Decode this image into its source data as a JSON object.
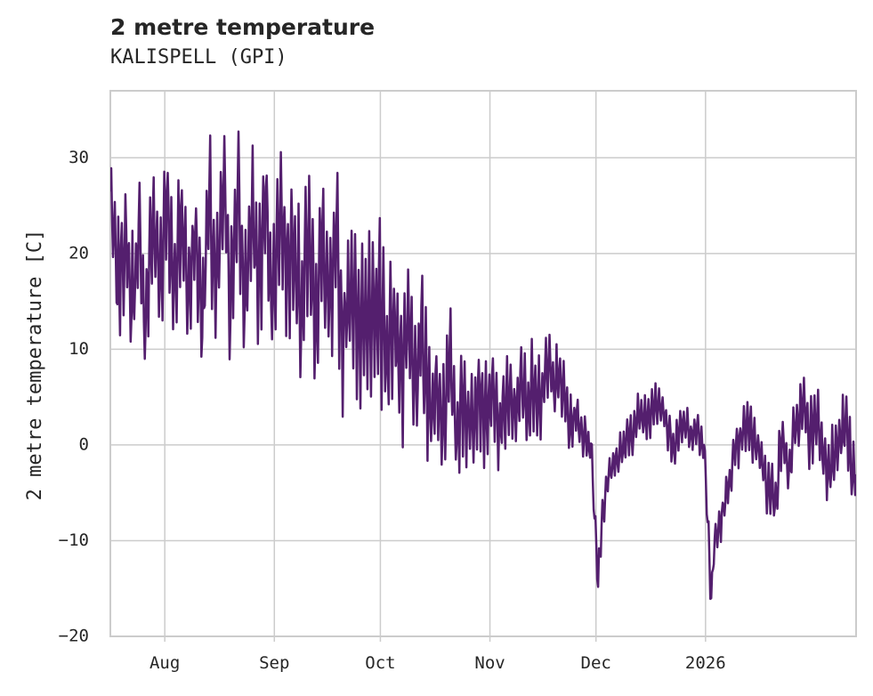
{
  "chart_data": {
    "type": "line",
    "title": "2 metre temperature",
    "subtitle": "KALISPELL (GPI)",
    "xlabel": "",
    "ylabel": "2 metre temperature [C]",
    "ylim": [
      -20,
      37
    ],
    "yticks": [
      -20,
      -10,
      0,
      10,
      20,
      30
    ],
    "xlim_days": [
      0,
      211
    ],
    "xticks": [
      {
        "label": "Aug",
        "day": 15.4
      },
      {
        "label": "Sep",
        "day": 46.4
      },
      {
        "label": "Oct",
        "day": 76.4
      },
      {
        "label": "Nov",
        "day": 107.4
      },
      {
        "label": "Dec",
        "day": 137.4
      },
      {
        "label": "2026",
        "day": 168.4
      }
    ],
    "grid": true,
    "line_color": "#541f6e",
    "series": [
      {
        "name": "2 metre temperature",
        "keypoints": [
          [
            0,
            26
          ],
          [
            2,
            16
          ],
          [
            4,
            22
          ],
          [
            6,
            15
          ],
          [
            8,
            21
          ],
          [
            10,
            13
          ],
          [
            12,
            24
          ],
          [
            14,
            17
          ],
          [
            16,
            27
          ],
          [
            18,
            15
          ],
          [
            20,
            25
          ],
          [
            22,
            16
          ],
          [
            24,
            22
          ],
          [
            26,
            14
          ],
          [
            28,
            25
          ],
          [
            30,
            15
          ],
          [
            32,
            27
          ],
          [
            34,
            16
          ],
          [
            36,
            26
          ],
          [
            38,
            15
          ],
          [
            40,
            24
          ],
          [
            42,
            17
          ],
          [
            44,
            25
          ],
          [
            46,
            15
          ],
          [
            48,
            26
          ],
          [
            50,
            18
          ],
          [
            52,
            23
          ],
          [
            54,
            14
          ],
          [
            56,
            22
          ],
          [
            58,
            14
          ],
          [
            60,
            21
          ],
          [
            62,
            13
          ],
          [
            64,
            20
          ],
          [
            66,
            11
          ],
          [
            68,
            19
          ],
          [
            70,
            10
          ],
          [
            72,
            17
          ],
          [
            74,
            10
          ],
          [
            76,
            16
          ],
          [
            78,
            9
          ],
          [
            80,
            14
          ],
          [
            82,
            8
          ],
          [
            84,
            12
          ],
          [
            86,
            5
          ],
          [
            88,
            11
          ],
          [
            90,
            4
          ],
          [
            92,
            6
          ],
          [
            94,
            3
          ],
          [
            96,
            8
          ],
          [
            98,
            2
          ],
          [
            100,
            5
          ],
          [
            102,
            2
          ],
          [
            104,
            7
          ],
          [
            106,
            3
          ],
          [
            108,
            5
          ],
          [
            110,
            1
          ],
          [
            112,
            5
          ],
          [
            114,
            3
          ],
          [
            116,
            6
          ],
          [
            118,
            4
          ],
          [
            120,
            7
          ],
          [
            122,
            5
          ],
          [
            124,
            8
          ],
          [
            126,
            7
          ],
          [
            128,
            6
          ],
          [
            130,
            2
          ],
          [
            132,
            3
          ],
          [
            134,
            1
          ],
          [
            136,
            0
          ],
          [
            137,
            -7
          ],
          [
            138,
            -14
          ],
          [
            139,
            -8
          ],
          [
            140,
            -5
          ],
          [
            142,
            -2
          ],
          [
            144,
            -1
          ],
          [
            146,
            0
          ],
          [
            148,
            2
          ],
          [
            150,
            3
          ],
          [
            152,
            3
          ],
          [
            154,
            5
          ],
          [
            156,
            4
          ],
          [
            158,
            1
          ],
          [
            160,
            0
          ],
          [
            162,
            3
          ],
          [
            164,
            1
          ],
          [
            166,
            2
          ],
          [
            168,
            0
          ],
          [
            169,
            -8
          ],
          [
            170,
            -16
          ],
          [
            171,
            -10
          ],
          [
            172,
            -9
          ],
          [
            174,
            -6
          ],
          [
            176,
            -2
          ],
          [
            178,
            0
          ],
          [
            180,
            2
          ],
          [
            182,
            1
          ],
          [
            184,
            -1
          ],
          [
            186,
            -4
          ],
          [
            188,
            -6
          ],
          [
            190,
            1
          ],
          [
            192,
            -3
          ],
          [
            194,
            2
          ],
          [
            196,
            4
          ],
          [
            198,
            1
          ],
          [
            200,
            3
          ],
          [
            202,
            -1
          ],
          [
            204,
            -2
          ],
          [
            206,
            0
          ],
          [
            208,
            2
          ],
          [
            210,
            -3
          ]
        ],
        "amplitude": [
          [
            0,
            5
          ],
          [
            60,
            6
          ],
          [
            80,
            7
          ],
          [
            95,
            4.5
          ],
          [
            120,
            3.5
          ],
          [
            136,
            1.5
          ],
          [
            150,
            2
          ],
          [
            168,
            1.5
          ],
          [
            190,
            2.5
          ],
          [
            211,
            3
          ]
        ],
        "noise_seed": 7,
        "step_days": 0.25
      }
    ]
  }
}
